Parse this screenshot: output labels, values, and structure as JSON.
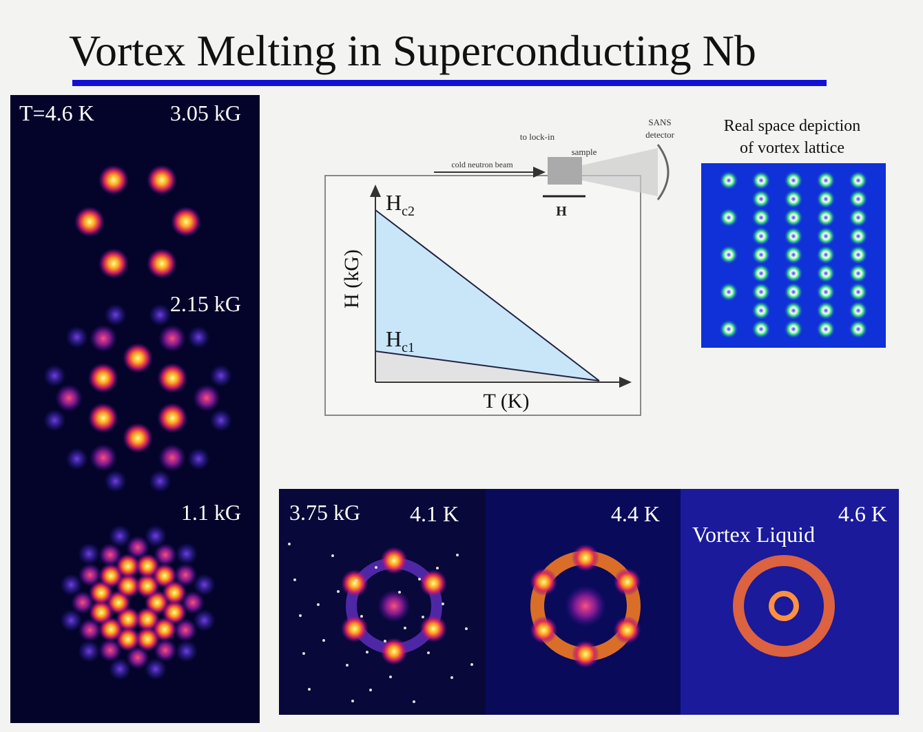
{
  "title": "Vortex Melting in Superconducting Nb",
  "left_panel": {
    "temperature": "T=4.6 K",
    "fields": [
      "3.05 kG",
      "2.15 kG",
      "1.1 kG"
    ]
  },
  "phase_diagram": {
    "y_axis": "H (kG)",
    "x_axis": "T (K)",
    "upper_critical": {
      "symbol": "H",
      "subscript": "c2"
    },
    "lower_critical": {
      "symbol": "H",
      "subscript": "c1"
    },
    "setup": {
      "beam": "cold neutron beam",
      "lock_in": "to lock-in",
      "sample": "sample",
      "field": "H",
      "detector": [
        "SANS",
        "detector"
      ]
    }
  },
  "real_space": {
    "caption": [
      "Real space depiction",
      "of vortex lattice"
    ]
  },
  "bottom_panel": {
    "field": "3.75 kG",
    "temperatures": [
      "4.1 K",
      "4.4 K",
      "4.6 K"
    ],
    "label": "Vortex Liquid"
  }
}
